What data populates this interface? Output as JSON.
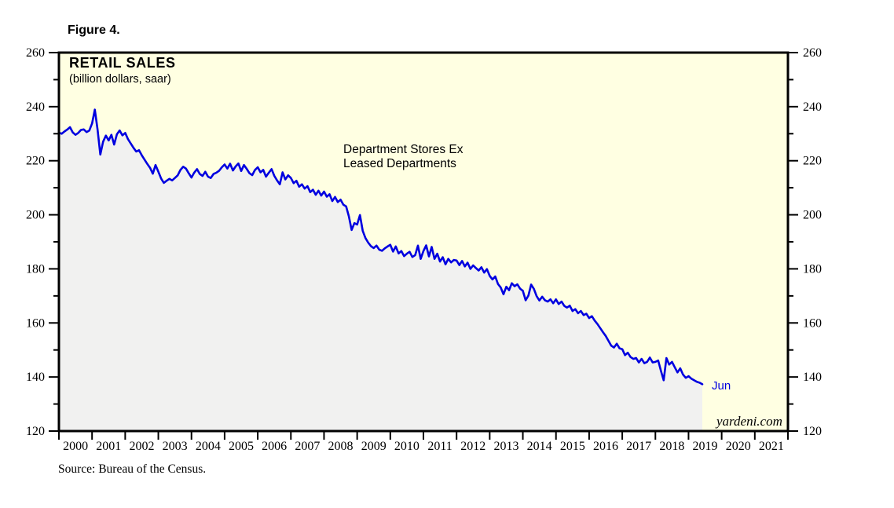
{
  "figure_label": "Figure 4.",
  "chart": {
    "title": "RETAIL SALES",
    "subtitle": "(billion dollars, saar)",
    "annotation_line1": "Department Stores Ex",
    "annotation_line2": "Leased Departments",
    "last_point_label": "Jun",
    "watermark": "yardeni.com",
    "colors": {
      "line": "#0000e0",
      "plot_background": "#ffffe2",
      "area_fill": "#f1f1f0",
      "frame": "#000000"
    }
  },
  "source_note": "Source: Bureau of the Census.",
  "chart_data": {
    "type": "line",
    "title": "RETAIL SALES",
    "subtitle": "(billion dollars, saar)",
    "grid": "off",
    "legend": "none",
    "x_axis": {
      "range": [
        2000,
        2022
      ],
      "tick_years": [
        2000,
        2001,
        2002,
        2003,
        2004,
        2005,
        2006,
        2007,
        2008,
        2009,
        2010,
        2011,
        2012,
        2013,
        2014,
        2015,
        2016,
        2017,
        2018,
        2019,
        2020,
        2021
      ]
    },
    "y_axis": {
      "range": [
        120,
        260
      ],
      "major_tick_step": 20,
      "minor_tick_step": 10,
      "tick_labels": [
        260,
        240,
        220,
        200,
        180,
        160,
        140,
        120
      ],
      "sides": [
        "left",
        "right"
      ]
    },
    "annotations": [
      {
        "text": "Department Stores Ex Leased Departments",
        "x": 2008.6,
        "y": 222
      },
      {
        "text": "Jun",
        "x": 2019.7,
        "y": 137.5,
        "color": "#0000e0"
      },
      {
        "text": "yardeni.com",
        "x": 2020.5,
        "y": 123
      }
    ],
    "series": [
      {
        "name": "Department Stores Ex Leased Departments",
        "frequency": "monthly",
        "start": "2000-01",
        "end": "2019-06",
        "area_fill_under_curve": true,
        "values": [
          230.4,
          230.0,
          230.8,
          231.5,
          232.4,
          230.5,
          229.6,
          230.3,
          231.4,
          231.6,
          230.6,
          231.2,
          233.8,
          238.9,
          231.5,
          222.3,
          227.0,
          229.3,
          227.5,
          229.6,
          226.0,
          229.8,
          231.2,
          229.4,
          230.3,
          228.0,
          226.4,
          224.8,
          223.4,
          223.9,
          222.0,
          220.4,
          218.8,
          217.4,
          215.2,
          218.4,
          216.0,
          213.4,
          211.8,
          212.6,
          213.3,
          212.7,
          213.6,
          214.6,
          216.6,
          217.8,
          217.1,
          215.4,
          213.8,
          215.6,
          216.9,
          215.1,
          214.4,
          215.9,
          214.1,
          213.6,
          215.1,
          215.6,
          216.3,
          217.6,
          218.6,
          217.1,
          218.9,
          216.4,
          217.9,
          219.0,
          216.2,
          218.4,
          217.0,
          215.4,
          214.7,
          216.6,
          217.6,
          215.7,
          216.6,
          214.1,
          215.6,
          216.9,
          214.4,
          212.7,
          211.3,
          215.7,
          213.1,
          214.6,
          213.6,
          211.7,
          212.6,
          210.4,
          211.3,
          209.7,
          210.6,
          208.4,
          209.3,
          207.4,
          208.9,
          207.1,
          208.6,
          206.7,
          207.6,
          205.1,
          206.6,
          204.7,
          205.6,
          203.7,
          203.1,
          199.4,
          194.4,
          196.9,
          196.4,
          199.9,
          194.1,
          191.4,
          189.7,
          188.4,
          187.7,
          188.6,
          187.1,
          186.7,
          187.6,
          188.3,
          188.9,
          186.4,
          188.3,
          185.7,
          186.6,
          184.7,
          185.6,
          186.3,
          184.4,
          185.1,
          188.6,
          183.7,
          186.6,
          188.7,
          184.6,
          188.1,
          183.7,
          185.6,
          182.7,
          184.3,
          181.7,
          183.7,
          182.4,
          183.3,
          183.1,
          181.4,
          182.9,
          180.9,
          182.3,
          180.0,
          181.3,
          180.3,
          179.4,
          180.6,
          178.6,
          179.9,
          177.4,
          176.1,
          177.2,
          174.4,
          173.1,
          170.6,
          173.4,
          172.1,
          174.7,
          173.6,
          174.3,
          172.7,
          171.9,
          168.4,
          170.1,
          174.2,
          172.6,
          169.9,
          168.3,
          169.7,
          168.4,
          167.9,
          168.7,
          167.3,
          168.7,
          167.0,
          167.9,
          166.3,
          165.7,
          166.4,
          164.4,
          165.1,
          163.6,
          164.4,
          162.9,
          163.4,
          161.8,
          162.5,
          160.9,
          159.6,
          158.1,
          156.6,
          155.2,
          153.4,
          151.6,
          150.9,
          152.3,
          150.6,
          150.3,
          148.1,
          149.0,
          147.4,
          146.7,
          147.0,
          145.4,
          146.7,
          145.1,
          145.6,
          147.2,
          145.4,
          145.6,
          146.1,
          142.3,
          138.8,
          147.0,
          144.6,
          145.6,
          143.6,
          141.7,
          143.2,
          140.9,
          139.7,
          140.3,
          139.4,
          138.8,
          138.2,
          137.9,
          137.3
        ]
      }
    ]
  }
}
